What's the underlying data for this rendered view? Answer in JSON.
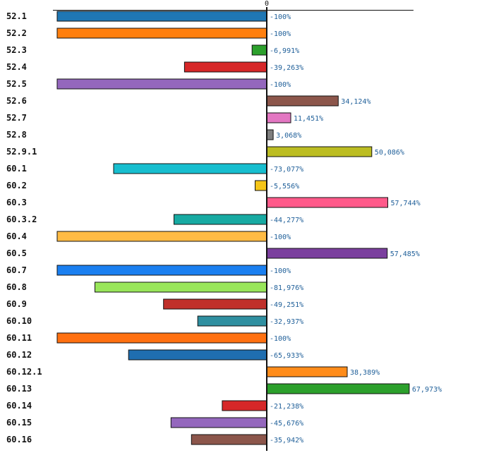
{
  "chart_data": {
    "type": "bar",
    "orientation": "horizontal",
    "title": "",
    "xlabel": "",
    "ylabel": "",
    "xlim": [
      -100,
      70
    ],
    "zero_tick_label": "0",
    "grid": false,
    "legend": "none",
    "categories": [
      "52.1",
      "52.2",
      "52.3",
      "52.4",
      "52.5",
      "52.6",
      "52.7",
      "52.8",
      "52.9.1",
      "60.1",
      "60.2",
      "60.3",
      "60.3.2",
      "60.4",
      "60.5",
      "60.7",
      "60.8",
      "60.9",
      "60.10",
      "60.11",
      "60.12",
      "60.12.1",
      "60.13",
      "60.14",
      "60.15",
      "60.16"
    ],
    "values": [
      -100,
      -100,
      -6.991,
      -39.263,
      -100,
      34.124,
      11.451,
      3.068,
      50.086,
      -73.077,
      -5.556,
      57.744,
      -44.277,
      -100,
      57.485,
      -100,
      -81.976,
      -49.251,
      -32.937,
      -100,
      -65.933,
      38.389,
      67.973,
      -21.238,
      -45.676,
      -35.942
    ],
    "value_labels": [
      "-100%",
      "-100%",
      "-6,991%",
      "-39,263%",
      "-100%",
      "34,124%",
      "11,451%",
      "3,068%",
      "50,086%",
      "-73,077%",
      "-5,556%",
      "57,744%",
      "-44,277%",
      "-100%",
      "57,485%",
      "-100%",
      "-81,976%",
      "-49,251%",
      "-32,937%",
      "-100%",
      "-65,933%",
      "38,389%",
      "67,973%",
      "-21,238%",
      "-45,676%",
      "-35,942%"
    ],
    "colors": [
      "#1f77b4",
      "#ff7f0e",
      "#2ca02c",
      "#d62728",
      "#9467bd",
      "#8c564b",
      "#e377c2",
      "#7f7f7f",
      "#bcbd22",
      "#17becf",
      "#f5c518",
      "#ff5a8a",
      "#17aaa2",
      "#ffbb44",
      "#7b3f9e",
      "#1a7ff0",
      "#99e65a",
      "#c0302a",
      "#2f8fa0",
      "#ff7010",
      "#1f6eb0",
      "#ff8c1a",
      "#2ca02c",
      "#d62728",
      "#9467bd",
      "#8c564b"
    ]
  }
}
